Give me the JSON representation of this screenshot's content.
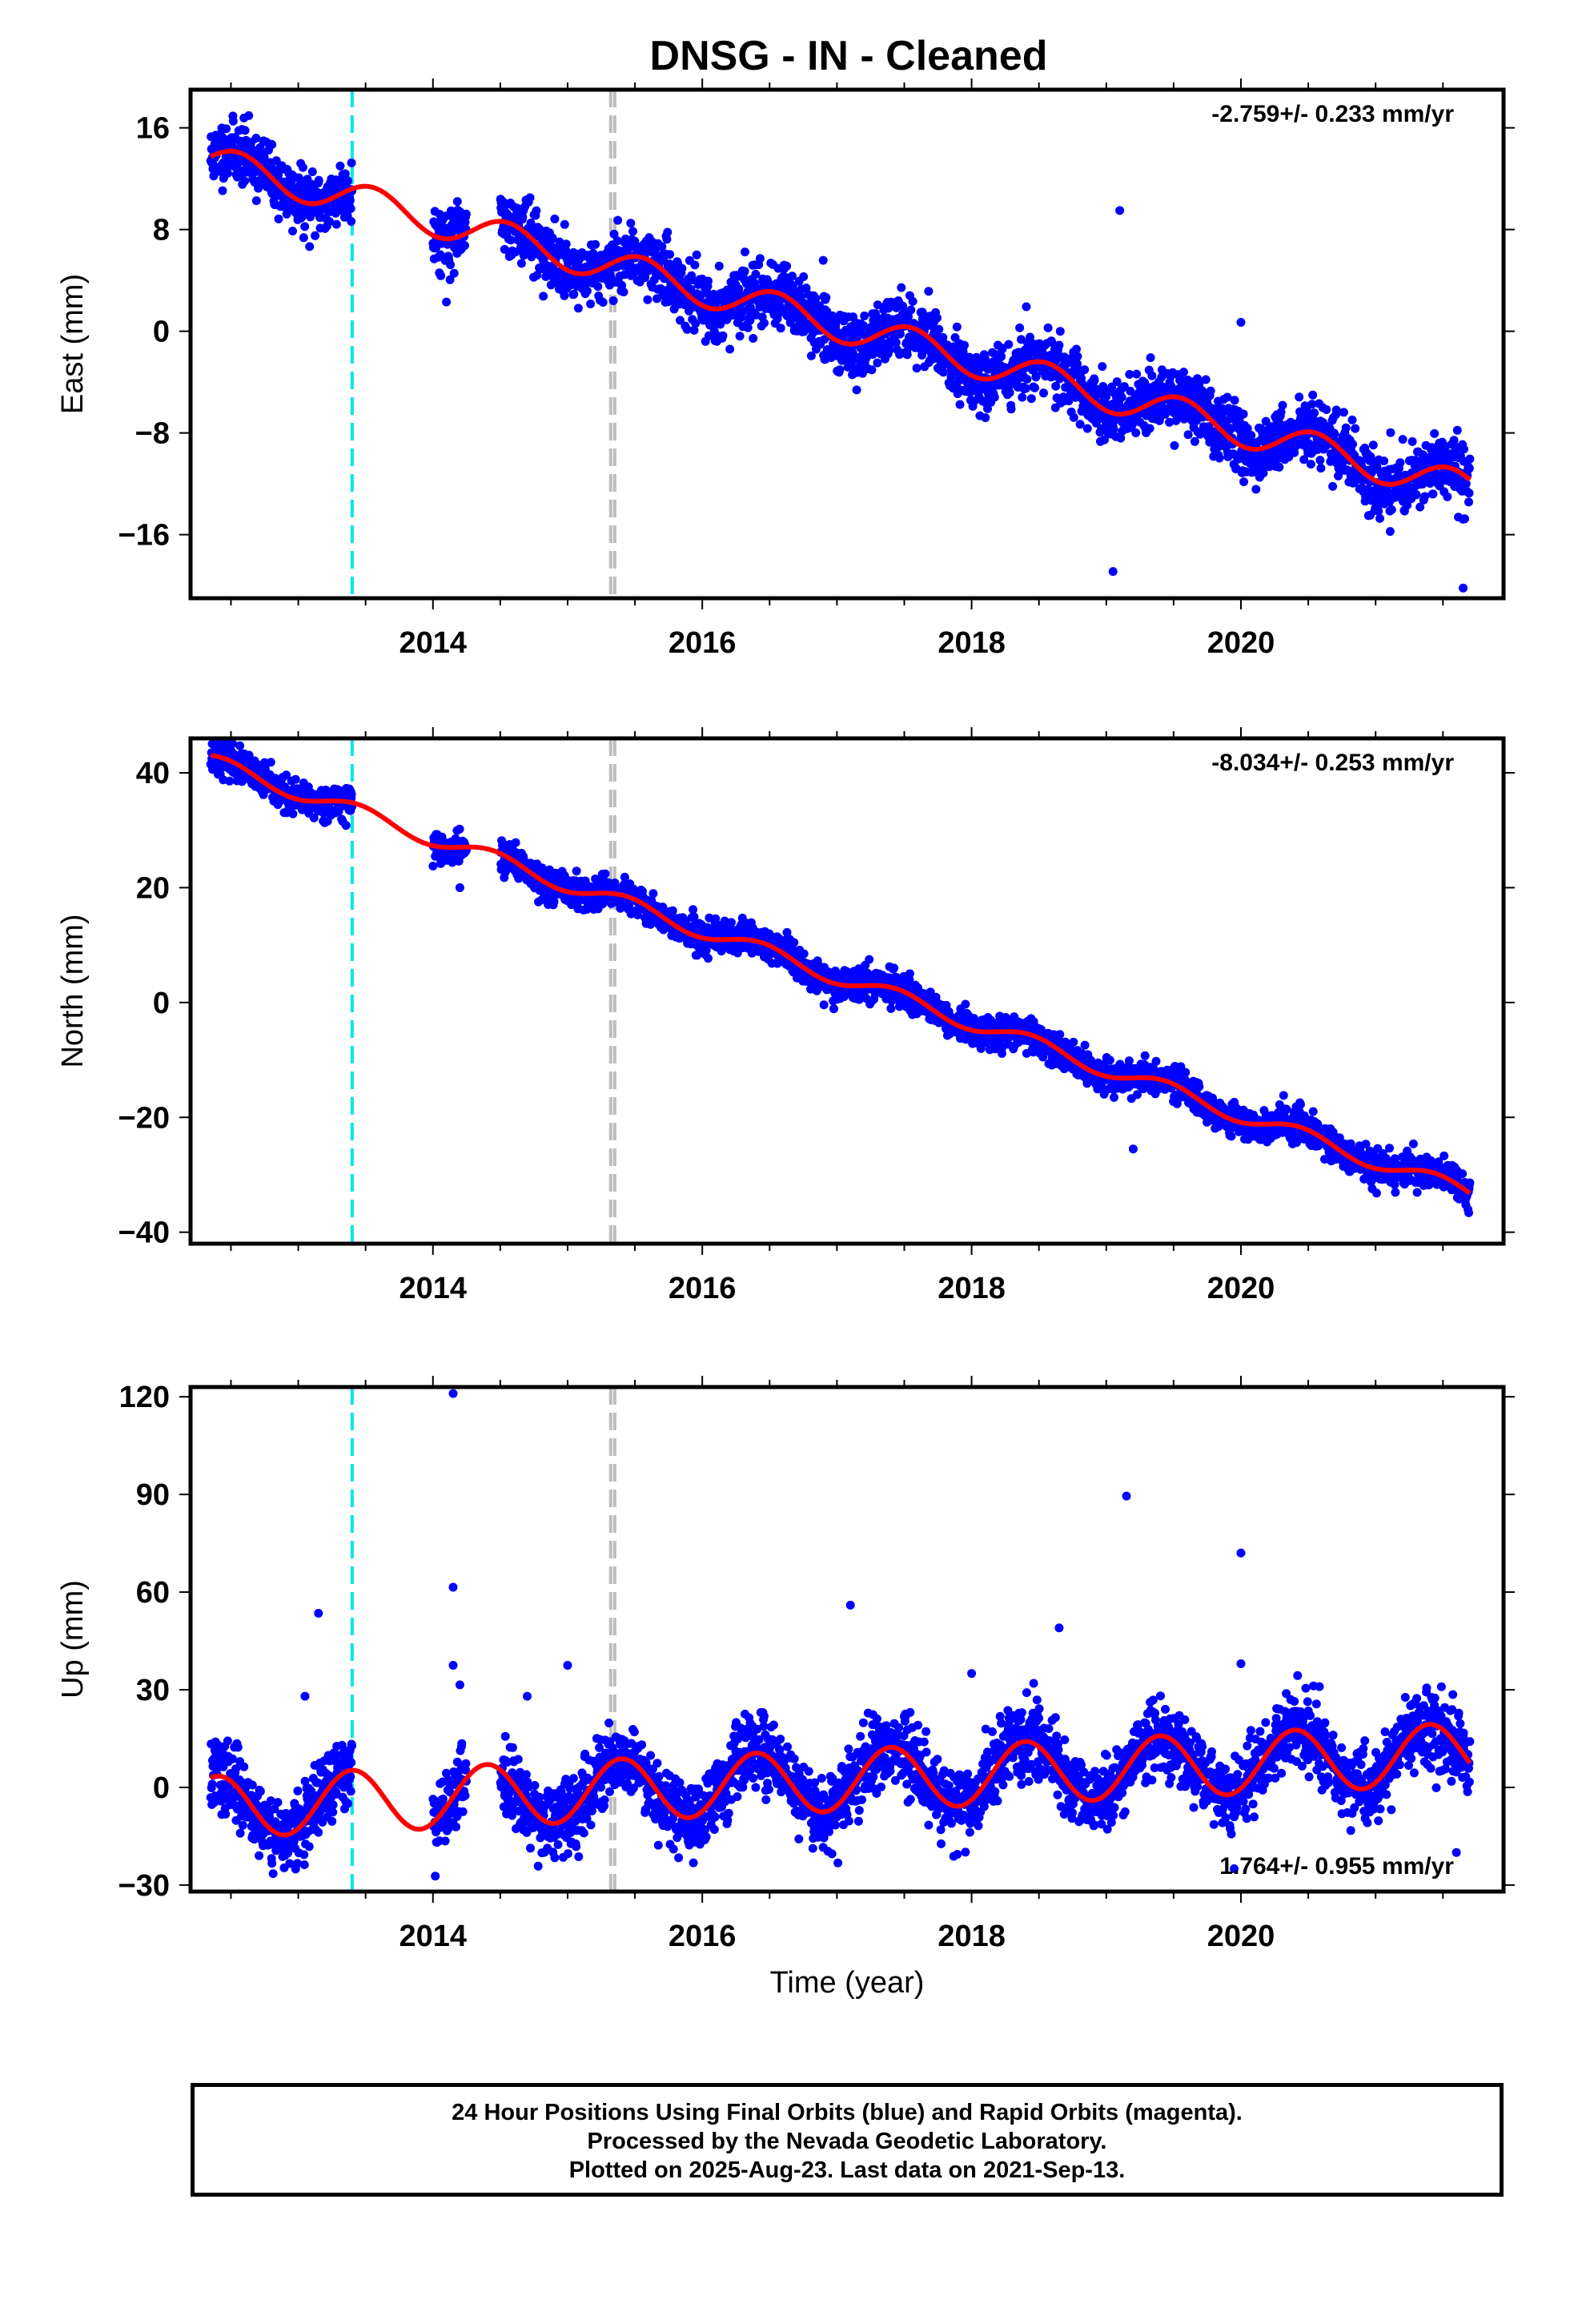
{
  "title": "DNSG  - IN - Cleaned",
  "xlabel": "Time (year)",
  "footer": {
    "line1": "24 Hour Positions Using Final Orbits (blue) and Rapid Orbits (magenta).",
    "line2": "Processed by the Nevada Geodetic Laboratory.",
    "line3": "Plotted on 2025-Aug-23. Last data on 2021-Sep-13."
  },
  "colors": {
    "points": "#0000ff",
    "model": "#ff0000",
    "equipment_change": "#00e5ee",
    "other_event": "#bdbdbd",
    "axes": "#000000"
  },
  "chart_data": [
    {
      "type": "scatter",
      "panel": "east",
      "ylabel": "East (mm)",
      "rate_label": "-2.759+/- 0.233 mm/yr",
      "rate_position": "top-right",
      "xlim": [
        2012.2,
        2021.95
      ],
      "ylim": [
        -21,
        19
      ],
      "xticks": [
        2014,
        2016,
        2018,
        2020
      ],
      "xtick_labels": [
        "2014",
        "2016",
        "2018",
        "2020"
      ],
      "yticks": [
        16,
        8,
        0,
        -8,
        -16
      ],
      "ytick_labels": [
        "16",
        "8",
        "0",
        "−8",
        "−16"
      ],
      "events": {
        "equipment_change": [
          2013.4
        ],
        "other": [
          2015.32,
          2015.35
        ]
      },
      "model": {
        "a": 13.2,
        "b": -2.759,
        "t0": 2012.4,
        "amp": 1.3,
        "phase": 0.3
      },
      "scatter": {
        "sigma": 1.2,
        "seed": 11,
        "gap": [
          2013.4,
          2014.0
        ],
        "gap2": [
          2014.25,
          2014.5
        ]
      },
      "outliers": [
        [
          2019.1,
          9.5
        ],
        [
          2019.05,
          -18.9
        ],
        [
          2021.65,
          -20.2
        ],
        [
          2020.0,
          0.7
        ],
        [
          2014.1,
          2.3
        ]
      ]
    },
    {
      "type": "scatter",
      "panel": "north",
      "ylabel": "North (mm)",
      "rate_label": "-8.034+/- 0.253 mm/yr",
      "rate_position": "top-right",
      "xlim": [
        2012.2,
        2021.95
      ],
      "ylim": [
        -42,
        46
      ],
      "xticks": [
        2014,
        2016,
        2018,
        2020
      ],
      "xtick_labels": [
        "2014",
        "2016",
        "2018",
        "2020"
      ],
      "yticks": [
        40,
        20,
        0,
        -20,
        -40
      ],
      "ytick_labels": [
        "40",
        "20",
        "0",
        "−20",
        "−40"
      ],
      "events": {
        "equipment_change": [
          2013.4
        ],
        "other": [
          2015.32,
          2015.35
        ]
      },
      "model": {
        "a": 41.5,
        "b": -8.034,
        "t0": 2012.4,
        "amp": 1.4,
        "phase": 0.2
      },
      "scatter": {
        "sigma": 1.4,
        "seed": 23,
        "gap": [
          2013.4,
          2014.0
        ],
        "gap2": [
          2014.25,
          2014.5
        ]
      },
      "outliers": [
        [
          2019.2,
          -25.5
        ],
        [
          2014.2,
          20.0
        ],
        [
          2016.65,
          11.0
        ]
      ]
    },
    {
      "type": "scatter",
      "panel": "up",
      "ylabel": "Up (mm)",
      "rate_label": "1.764+/- 0.955 mm/yr",
      "rate_position": "bottom-right",
      "xlim": [
        2012.2,
        2021.95
      ],
      "ylim": [
        -32,
        123
      ],
      "xticks": [
        2014,
        2016,
        2018,
        2020
      ],
      "xtick_labels": [
        "2014",
        "2016",
        "2018",
        "2020"
      ],
      "yticks": [
        120,
        90,
        60,
        30,
        0,
        -30
      ],
      "ytick_labels": [
        "120",
        "90",
        "60",
        "30",
        "0",
        "−30"
      ],
      "events": {
        "equipment_change": [
          2013.4
        ],
        "other": [
          2015.32,
          2015.35
        ]
      },
      "model": {
        "a": -6.0,
        "b": 1.764,
        "t0": 2012.4,
        "amp": 9.5,
        "phase": 0.15
      },
      "scatter": {
        "sigma": 5.5,
        "seed": 37,
        "gap": [
          2013.4,
          2014.0
        ],
        "gap2": [
          2014.25,
          2014.5
        ]
      },
      "outliers": [
        [
          2014.15,
          121
        ],
        [
          2019.15,
          89.5
        ],
        [
          2020.0,
          72
        ],
        [
          2014.15,
          61.5
        ],
        [
          2017.1,
          56
        ],
        [
          2013.15,
          53.5
        ],
        [
          2018.65,
          49
        ],
        [
          2014.15,
          37.5
        ],
        [
          2014.2,
          31.5
        ],
        [
          2015.0,
          37.5
        ],
        [
          2020.0,
          38
        ],
        [
          2013.05,
          28
        ],
        [
          2014.7,
          28
        ],
        [
          2018.0,
          35
        ],
        [
          2016.45,
          23
        ],
        [
          2019.95,
          -25
        ],
        [
          2021.6,
          -20
        ]
      ]
    }
  ]
}
